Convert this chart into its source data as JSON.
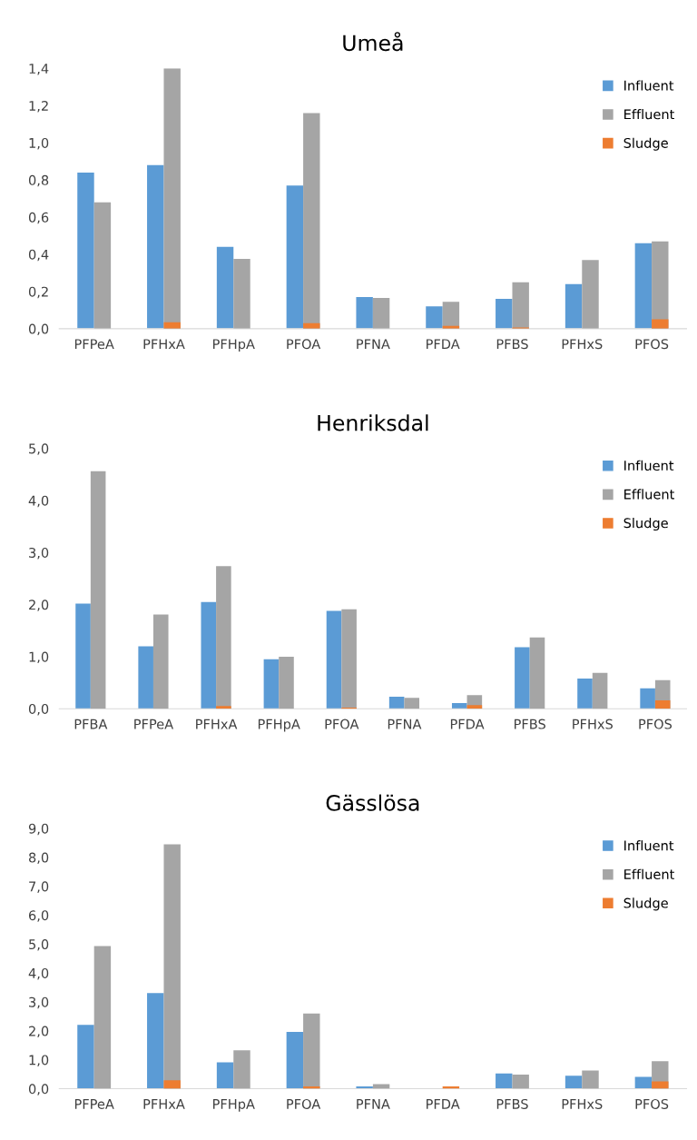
{
  "chart_data": [
    {
      "type": "bar",
      "title": "Umeå",
      "categories": [
        "PFPeA",
        "PFHxA",
        "PFHpA",
        "PFOA",
        "PFNA",
        "PFDA",
        "PFBS",
        "PFHxS",
        "PFOS"
      ],
      "series": [
        {
          "name": "Influent",
          "color": "#5b9bd5",
          "values": [
            0.84,
            0.88,
            0.44,
            0.77,
            0.17,
            0.12,
            0.16,
            0.24,
            0.46
          ]
        },
        {
          "name": "Effluent",
          "color": "#a5a5a5",
          "values": [
            0.68,
            1.4,
            0.375,
            1.16,
            0.165,
            0.145,
            0.25,
            0.37,
            0.47
          ]
        },
        {
          "name": "Sludge",
          "color": "#ed7d31",
          "values": [
            null,
            0.035,
            null,
            0.03,
            null,
            0.015,
            0.007,
            null,
            0.05
          ]
        }
      ],
      "ylim": [
        0,
        1.4
      ],
      "yticks": [
        {
          "value": 0,
          "label": "0,0"
        },
        {
          "value": 0.2,
          "label": "0,2"
        },
        {
          "value": 0.4,
          "label": "0,4"
        },
        {
          "value": 0.6,
          "label": "0,6"
        },
        {
          "value": 0.8,
          "label": "0,8"
        },
        {
          "value": 1.0,
          "label": "1,0"
        },
        {
          "value": 1.2,
          "label": "1,2"
        },
        {
          "value": 1.4,
          "label": "1,4"
        }
      ],
      "grid": false,
      "legend": "top right"
    },
    {
      "type": "bar",
      "title": "Henriksdal",
      "categories": [
        "PFBA",
        "PFPeA",
        "PFHxA",
        "PFHpA",
        "PFOA",
        "PFNA",
        "PFDA",
        "PFBS",
        "PFHxS",
        "PFOS"
      ],
      "series": [
        {
          "name": "Influent",
          "color": "#5b9bd5",
          "values": [
            2.02,
            1.2,
            2.05,
            0.95,
            1.88,
            0.23,
            0.11,
            1.18,
            0.58,
            0.39
          ]
        },
        {
          "name": "Effluent",
          "color": "#a5a5a5",
          "values": [
            4.56,
            1.81,
            2.74,
            1.0,
            1.91,
            0.21,
            0.26,
            1.37,
            0.69,
            0.55
          ]
        },
        {
          "name": "Sludge",
          "color": "#ed7d31",
          "values": [
            null,
            null,
            0.05,
            null,
            0.02,
            null,
            0.07,
            null,
            null,
            0.16
          ]
        }
      ],
      "ylim": [
        0,
        5
      ],
      "yticks": [
        {
          "value": 0,
          "label": "0,0"
        },
        {
          "value": 1,
          "label": "1,0"
        },
        {
          "value": 2,
          "label": "2,0"
        },
        {
          "value": 3,
          "label": "3,0"
        },
        {
          "value": 4,
          "label": "4,0"
        },
        {
          "value": 5,
          "label": "5,0"
        }
      ],
      "grid": false,
      "legend": "top right"
    },
    {
      "type": "bar",
      "title": "Gässlösa",
      "categories": [
        "PFPeA",
        "PFHxA",
        "PFHpA",
        "PFOA",
        "PFNA",
        "PFDA",
        "PFBS",
        "PFHxS",
        "PFOS"
      ],
      "series": [
        {
          "name": "Influent",
          "color": "#5b9bd5",
          "values": [
            2.21,
            3.31,
            0.91,
            1.96,
            0.08,
            null,
            0.53,
            0.45,
            0.41
          ]
        },
        {
          "name": "Effluent",
          "color": "#a5a5a5",
          "values": [
            4.93,
            8.45,
            1.33,
            2.6,
            0.16,
            null,
            0.49,
            0.63,
            0.95
          ]
        },
        {
          "name": "Sludge",
          "color": "#ed7d31",
          "values": [
            null,
            0.29,
            null,
            0.08,
            null,
            0.08,
            null,
            null,
            0.25
          ]
        }
      ],
      "ylim": [
        0,
        9
      ],
      "yticks": [
        {
          "value": 0,
          "label": "0,0"
        },
        {
          "value": 1,
          "label": "1,0"
        },
        {
          "value": 2,
          "label": "2,0"
        },
        {
          "value": 3,
          "label": "3,0"
        },
        {
          "value": 4,
          "label": "4,0"
        },
        {
          "value": 5,
          "label": "5,0"
        },
        {
          "value": 6,
          "label": "6,0"
        },
        {
          "value": 7,
          "label": "7,0"
        },
        {
          "value": 8,
          "label": "8,0"
        },
        {
          "value": 9,
          "label": "9,0"
        }
      ],
      "grid": false,
      "legend": "top right"
    }
  ]
}
